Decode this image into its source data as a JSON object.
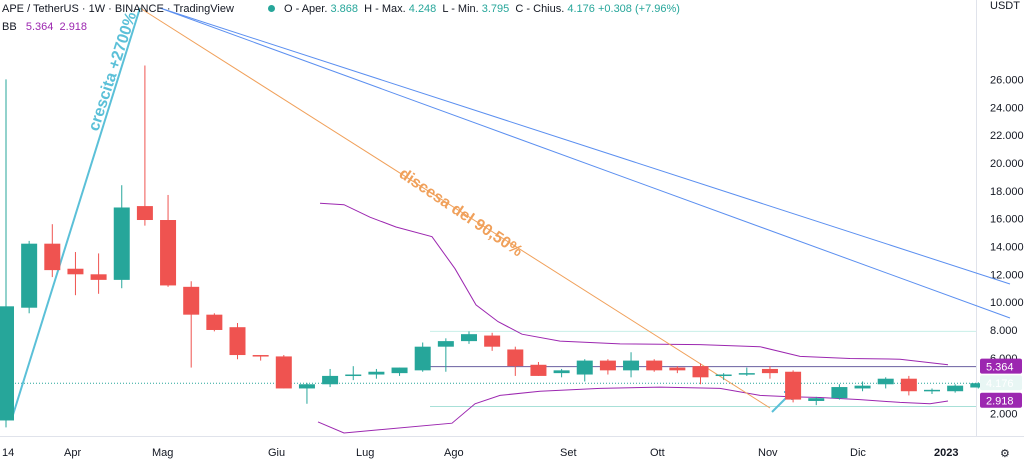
{
  "header": {
    "symbol": "APE / TetherUS · 1W · BINANCE · TradingView",
    "currency": "USDT"
  },
  "ohlc": {
    "open_label": "O - Aper.",
    "open": "3.868",
    "high_label": "H - Max.",
    "high": "4.248",
    "low_label": "L - Min.",
    "low": "3.795",
    "close_label": "C - Chius.",
    "close": "4.176",
    "change": "+0.308 (+7.96%)"
  },
  "indicator": {
    "name": "BB",
    "upper": "5.364",
    "lower": "2.918"
  },
  "price_tags": {
    "upper": "5.364",
    "last": "4.176",
    "lower": "2.918"
  },
  "annotations": {
    "growth": "crescita +2700%",
    "decline": "discesa del 90,50%"
  },
  "colors": {
    "up": "#26a69a",
    "down": "#ef5350",
    "bands": "#9c27b0",
    "growth_line": "#5bc0d8",
    "decline_line": "#f0a05a",
    "trend_lines": "#5b8ff0"
  },
  "chart_data": {
    "type": "candlestick",
    "title": "APE / TetherUS · 1W · BINANCE",
    "y_axis": {
      "ticks": [
        2,
        4,
        6,
        8,
        10,
        12,
        14,
        16,
        18,
        20,
        22,
        24,
        26
      ],
      "tick_labels": [
        "2.000",
        "4.000",
        "6.000",
        "8.000",
        "10.000",
        "12.000",
        "14.000",
        "16.000",
        "18.000",
        "20.000",
        "22.000",
        "24.000",
        "26.000"
      ],
      "unit": "USDT",
      "range": [
        1.3,
        27.0
      ]
    },
    "x_axis": {
      "tick_labels": [
        "14",
        "Apr",
        "Mag",
        "Giu",
        "Lug",
        "Ago",
        "Set",
        "Ott",
        "Nov",
        "Dic",
        "2023"
      ]
    },
    "candles": [
      {
        "o": 1.5,
        "h": 26.0,
        "l": 1.0,
        "c": 9.7
      },
      {
        "o": 9.6,
        "h": 14.4,
        "l": 9.2,
        "c": 14.2
      },
      {
        "o": 14.2,
        "h": 15.6,
        "l": 11.8,
        "c": 12.3
      },
      {
        "o": 12.4,
        "h": 13.6,
        "l": 10.5,
        "c": 12.0
      },
      {
        "o": 12.0,
        "h": 13.5,
        "l": 10.6,
        "c": 11.6
      },
      {
        "o": 11.6,
        "h": 18.4,
        "l": 11.0,
        "c": 16.8
      },
      {
        "o": 16.9,
        "h": 27.0,
        "l": 15.5,
        "c": 15.9
      },
      {
        "o": 15.9,
        "h": 17.7,
        "l": 11.1,
        "c": 11.2
      },
      {
        "o": 11.1,
        "h": 11.5,
        "l": 5.3,
        "c": 9.1
      },
      {
        "o": 9.1,
        "h": 9.2,
        "l": 7.9,
        "c": 8.0
      },
      {
        "o": 8.2,
        "h": 8.5,
        "l": 5.9,
        "c": 6.2
      },
      {
        "o": 6.2,
        "h": 6.2,
        "l": 5.8,
        "c": 6.1
      },
      {
        "o": 6.1,
        "h": 6.2,
        "l": 3.8,
        "c": 3.8
      },
      {
        "o": 3.8,
        "h": 4.2,
        "l": 2.7,
        "c": 4.1
      },
      {
        "o": 4.1,
        "h": 5.2,
        "l": 3.9,
        "c": 4.7
      },
      {
        "o": 4.7,
        "h": 5.4,
        "l": 4.4,
        "c": 4.8
      },
      {
        "o": 4.8,
        "h": 5.2,
        "l": 4.5,
        "c": 5.0
      },
      {
        "o": 4.9,
        "h": 5.3,
        "l": 4.7,
        "c": 5.3
      },
      {
        "o": 5.1,
        "h": 7.1,
        "l": 5.0,
        "c": 6.8
      },
      {
        "o": 6.8,
        "h": 7.4,
        "l": 5.0,
        "c": 7.2
      },
      {
        "o": 7.2,
        "h": 7.9,
        "l": 7.0,
        "c": 7.7
      },
      {
        "o": 7.6,
        "h": 7.8,
        "l": 6.5,
        "c": 6.8
      },
      {
        "o": 6.6,
        "h": 6.8,
        "l": 4.7,
        "c": 5.4
      },
      {
        "o": 5.5,
        "h": 5.7,
        "l": 4.7,
        "c": 4.7
      },
      {
        "o": 4.9,
        "h": 5.2,
        "l": 4.6,
        "c": 5.1
      },
      {
        "o": 4.8,
        "h": 5.9,
        "l": 4.3,
        "c": 5.8
      },
      {
        "o": 5.8,
        "h": 5.9,
        "l": 4.8,
        "c": 5.1
      },
      {
        "o": 5.1,
        "h": 6.4,
        "l": 4.6,
        "c": 5.8
      },
      {
        "o": 5.8,
        "h": 5.9,
        "l": 5.0,
        "c": 5.1
      },
      {
        "o": 5.3,
        "h": 5.4,
        "l": 4.9,
        "c": 5.1
      },
      {
        "o": 5.4,
        "h": 5.6,
        "l": 4.1,
        "c": 4.6
      },
      {
        "o": 4.7,
        "h": 4.9,
        "l": 4.4,
        "c": 4.8
      },
      {
        "o": 4.8,
        "h": 5.3,
        "l": 4.7,
        "c": 4.9
      },
      {
        "o": 5.2,
        "h": 5.4,
        "l": 4.5,
        "c": 4.9
      },
      {
        "o": 5.0,
        "h": 5.1,
        "l": 2.8,
        "c": 3.0
      },
      {
        "o": 2.9,
        "h": 3.2,
        "l": 2.6,
        "c": 3.1
      },
      {
        "o": 3.1,
        "h": 4.1,
        "l": 3.0,
        "c": 3.9
      },
      {
        "o": 3.8,
        "h": 4.3,
        "l": 3.6,
        "c": 4.0
      },
      {
        "o": 4.1,
        "h": 4.6,
        "l": 3.8,
        "c": 4.5
      },
      {
        "o": 4.5,
        "h": 4.7,
        "l": 3.3,
        "c": 3.6
      },
      {
        "o": 3.6,
        "h": 3.8,
        "l": 3.4,
        "c": 3.7
      },
      {
        "o": 3.6,
        "h": 4.1,
        "l": 3.5,
        "c": 4.0
      },
      {
        "o": 3.868,
        "h": 4.248,
        "l": 3.795,
        "c": 4.176
      }
    ]
  }
}
